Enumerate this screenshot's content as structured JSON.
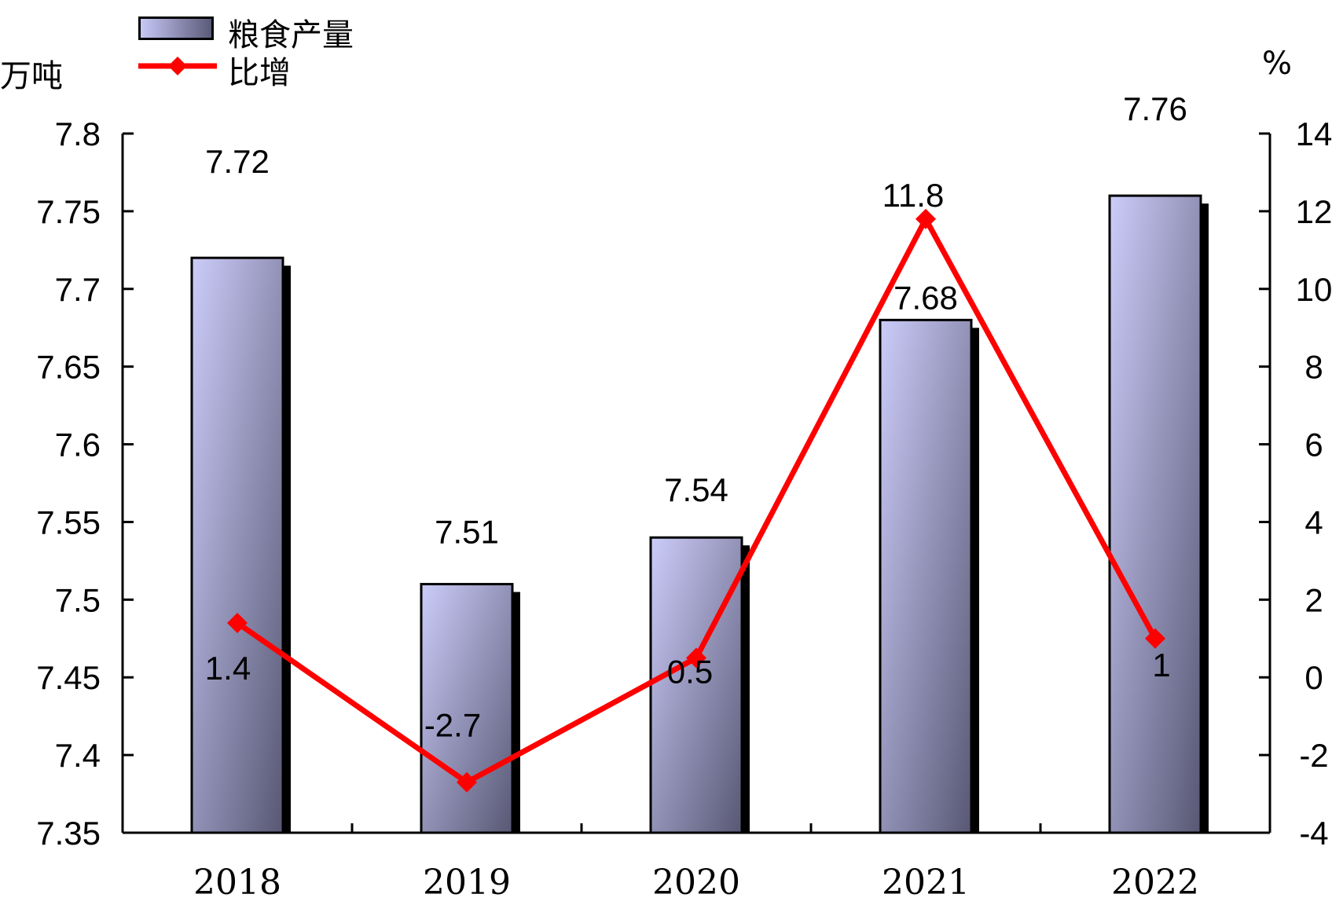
{
  "units": {
    "left": "万吨",
    "right": "%"
  },
  "legend": [
    {
      "label": "粮食产量",
      "type": "bar"
    },
    {
      "label": "比增",
      "type": "line"
    }
  ],
  "colors": {
    "bar_light": "#c8c8f8",
    "bar_dark": "#5a5a78",
    "line": "#ff0000"
  },
  "chart_data": {
    "type": "bar",
    "categories": [
      "2018",
      "2019",
      "2020",
      "2021",
      "2022"
    ],
    "series": [
      {
        "name": "粮食产量",
        "type": "bar",
        "axis": "left",
        "values": [
          7.72,
          7.51,
          7.54,
          7.68,
          7.76
        ],
        "labels": [
          "7.72",
          "7.51",
          "7.54",
          "7.68",
          "7.76"
        ]
      },
      {
        "name": "比增",
        "type": "line",
        "axis": "right",
        "values": [
          1.4,
          -2.7,
          0.5,
          11.8,
          1
        ],
        "labels": [
          "1.4",
          "-2.7",
          "0.5",
          "11.8",
          "1"
        ]
      }
    ],
    "y_left": {
      "min": 7.35,
      "max": 7.8,
      "ticks": [
        "7.35",
        "7.4",
        "7.45",
        "7.5",
        "7.55",
        "7.6",
        "7.65",
        "7.7",
        "7.75",
        "7.8"
      ]
    },
    "y_right": {
      "min": -4,
      "max": 14,
      "ticks": [
        "-4",
        "-2",
        "0",
        "2",
        "4",
        "6",
        "8",
        "10",
        "12",
        "14"
      ]
    },
    "grid": false,
    "legend_position": "top-left"
  }
}
